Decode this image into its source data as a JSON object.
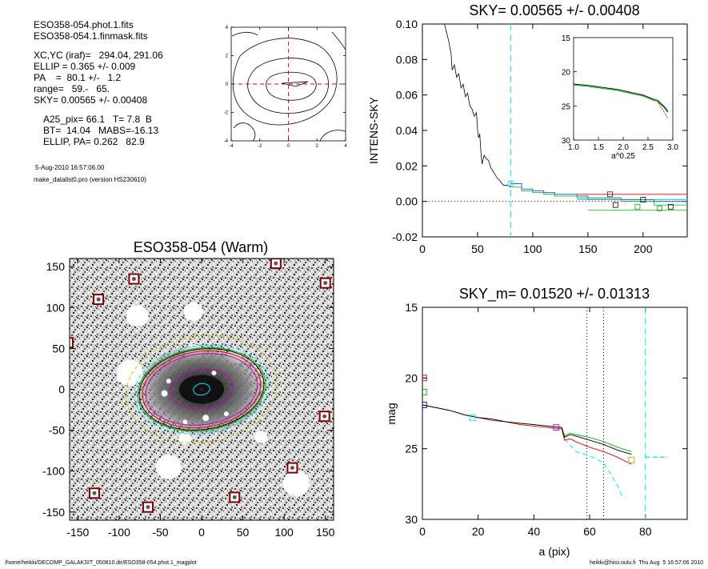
{
  "header": {
    "file1": "ESO358-054.phot.1.fits",
    "file2": "ESO358-054.1.finmask.fits",
    "xcyc": "XC,YC (iraf)=   294.04, 291.06",
    "ellip": "ELLIP = 0.365 +/- 0.009",
    "pa": "PA    =  80.1 +/-   1.2",
    "range": "range=   59.-   65.",
    "sky": "SKY= 0.00565 +/- 0.00408",
    "a25": "A25_pix= 66.1   T= 7.8  B",
    "bt": "BT=  14.04   MABS=-16.13",
    "ellip_pa": "ELLIP, PA= 0.262   82.9",
    "date": "5-Aug-2010 16:57:06.00",
    "program": "make_datalist0.pro (version HS230610)"
  },
  "footer": {
    "path": "/home/heikki/DECOMP_GALAKSIT_050810.dir/ESO358-054.phot.1_magplot",
    "user": "heikki@hiisi.oulu.fi  Thu Aug  5 16:57:06 2010"
  },
  "colors": {
    "cyan": "#00e5ff",
    "green": "#00b000",
    "red": "#e00000",
    "magenta": "#c000c0",
    "yellow": "#c8c800",
    "darkred": "#800000",
    "gray": "#808080"
  },
  "chart_data": [
    {
      "id": "contour",
      "type": "contour",
      "xlim": [
        -4,
        4
      ],
      "ylim": [
        -4,
        4
      ],
      "xticks": [
        "-4",
        "-2",
        "0",
        "2",
        "4"
      ],
      "yticks": [
        "-4",
        "-2",
        "0",
        "2",
        "4"
      ]
    },
    {
      "id": "sky",
      "type": "line",
      "title": "SKY= 0.00565 +/- 0.00408",
      "ylabel": "INTENS-SKY",
      "xlim": [
        0,
        240
      ],
      "ylim": [
        -0.02,
        0.1
      ],
      "xticks": [
        "0",
        "50",
        "100",
        "150",
        "200"
      ],
      "yticks": [
        "-0.02",
        "0.00",
        "0.02",
        "0.04",
        "0.06",
        "0.08",
        "0.10"
      ],
      "vline_x": 80,
      "profile": [
        [
          20,
          0.1
        ],
        [
          22,
          0.095
        ],
        [
          24,
          0.09
        ],
        [
          26,
          0.083
        ],
        [
          27,
          0.074
        ],
        [
          29,
          0.077
        ],
        [
          31,
          0.07
        ],
        [
          33,
          0.072
        ],
        [
          35,
          0.064
        ],
        [
          37,
          0.066
        ],
        [
          39,
          0.059
        ],
        [
          41,
          0.061
        ],
        [
          43,
          0.054
        ],
        [
          45,
          0.052
        ],
        [
          47,
          0.048
        ],
        [
          49,
          0.05
        ],
        [
          50,
          0.04
        ],
        [
          51,
          0.036
        ],
        [
          52,
          0.038
        ],
        [
          53,
          0.028
        ],
        [
          54,
          0.021
        ],
        [
          56,
          0.026
        ],
        [
          58,
          0.024
        ],
        [
          60,
          0.023
        ],
        [
          62,
          0.019
        ],
        [
          64,
          0.017
        ],
        [
          66,
          0.015
        ],
        [
          68,
          0.013
        ],
        [
          70,
          0.012
        ],
        [
          72,
          0.01
        ],
        [
          74,
          0.009
        ],
        [
          76,
          0.009
        ],
        [
          78,
          0.009
        ],
        [
          80,
          0.008
        ]
      ],
      "steps_blue": [
        [
          80,
          0.01
        ],
        [
          90,
          0.007
        ],
        [
          100,
          0.006
        ],
        [
          110,
          0.005
        ],
        [
          120,
          0.004
        ],
        [
          130,
          0.004
        ],
        [
          140,
          0.003
        ],
        [
          150,
          0.002
        ],
        [
          180,
          0.001
        ],
        [
          210,
          0.0
        ]
      ],
      "steps_green": [
        [
          80,
          0.008
        ],
        [
          90,
          0.006
        ],
        [
          100,
          0.005
        ],
        [
          110,
          0.004
        ],
        [
          120,
          0.003
        ],
        [
          130,
          0.003
        ],
        [
          140,
          0.002
        ],
        [
          150,
          0.001
        ],
        [
          180,
          0.0
        ],
        [
          210,
          -0.002
        ]
      ],
      "sky_lines": {
        "red": 0.004,
        "cyan": 0.001,
        "green": -0.005
      },
      "inset": {
        "xlim": [
          1.0,
          3.0
        ],
        "ylim": [
          15,
          30
        ],
        "xlabel": "a^0.25",
        "xticks": [
          "1.0",
          "1.5",
          "2.0",
          "2.5",
          "3.0"
        ],
        "yticks": [
          "15",
          "20",
          "25",
          "30"
        ],
        "profile": [
          [
            1.0,
            21.8
          ],
          [
            1.3,
            22.0
          ],
          [
            1.6,
            22.3
          ],
          [
            1.9,
            22.6
          ],
          [
            2.2,
            23.1
          ],
          [
            2.4,
            23.4
          ],
          [
            2.5,
            23.7
          ],
          [
            2.6,
            24.0
          ],
          [
            2.7,
            24.2
          ],
          [
            2.75,
            24.6
          ],
          [
            2.8,
            24.9
          ],
          [
            2.85,
            25.3
          ],
          [
            2.9,
            25.8
          ]
        ]
      }
    },
    {
      "id": "image",
      "type": "image",
      "title": "ESO358-054 (Warm)",
      "xlim": [
        -160,
        160
      ],
      "ylim": [
        -160,
        160
      ],
      "xticks": [
        "-150",
        "-100",
        "-50",
        "0",
        "50",
        "100",
        "150"
      ],
      "yticks": [
        "-150",
        "-100",
        "-50",
        "0",
        "50",
        "100",
        "150"
      ],
      "stars": [
        [
          90,
          154
        ],
        [
          -82,
          135
        ],
        [
          150,
          130
        ],
        [
          -125,
          110
        ],
        [
          -162,
          57
        ],
        [
          149,
          -33
        ],
        [
          110,
          -96
        ],
        [
          -130,
          -127
        ],
        [
          -65,
          -144
        ],
        [
          40,
          -132
        ]
      ],
      "ellipses": [
        {
          "a": 10,
          "e": 0.3,
          "color": "#00e5ff"
        },
        {
          "a": 38,
          "e": 0.37,
          "color": "#c000c0"
        },
        {
          "a": 68,
          "e": 0.37,
          "color": "#c000c0"
        },
        {
          "a": 72,
          "e": 0.36,
          "color": "#e00000"
        },
        {
          "a": 76,
          "e": 0.36,
          "color": "#000000"
        },
        {
          "a": 78,
          "e": 0.36,
          "color": "#00b000"
        },
        {
          "a": 82,
          "e": 0.35,
          "color": "#00e5ff"
        },
        {
          "a": 92,
          "e": 0.3,
          "color": "#c8c800"
        }
      ]
    },
    {
      "id": "mag",
      "type": "line",
      "title": "SKY_m=  0.01520 +/- 0.01313",
      "xlabel": "a (pix)",
      "ylabel": "mag",
      "xlim": [
        0,
        95
      ],
      "ylim": [
        15,
        30
      ],
      "xticks": [
        "0",
        "20",
        "40",
        "60",
        "80"
      ],
      "yticks": [
        "15",
        "20",
        "25",
        "30"
      ],
      "vlines_dotted": [
        59,
        65
      ],
      "vline_cyan": 80,
      "black": [
        [
          0,
          21.9
        ],
        [
          5,
          22.1
        ],
        [
          10,
          22.3
        ],
        [
          15,
          22.6
        ],
        [
          20,
          22.8
        ],
        [
          25,
          22.9
        ],
        [
          30,
          23.1
        ],
        [
          35,
          23.2
        ],
        [
          40,
          23.3
        ],
        [
          45,
          23.4
        ],
        [
          50,
          23.5
        ],
        [
          51,
          24.2
        ],
        [
          53,
          24.0
        ],
        [
          55,
          24.1
        ],
        [
          60,
          24.4
        ],
        [
          65,
          24.7
        ],
        [
          70,
          25.1
        ],
        [
          75,
          25.4
        ]
      ],
      "red": [
        [
          0,
          21.9
        ],
        [
          5,
          22.1
        ],
        [
          10,
          22.3
        ],
        [
          15,
          22.6
        ],
        [
          20,
          22.8
        ],
        [
          25,
          23.0
        ],
        [
          30,
          23.1
        ],
        [
          35,
          23.3
        ],
        [
          40,
          23.4
        ],
        [
          45,
          23.5
        ],
        [
          50,
          23.6
        ],
        [
          51,
          24.4
        ],
        [
          53,
          24.3
        ],
        [
          55,
          24.5
        ],
        [
          60,
          24.9
        ],
        [
          65,
          25.2
        ],
        [
          70,
          25.6
        ],
        [
          75,
          26.1
        ]
      ],
      "green": [
        [
          0,
          21.9
        ],
        [
          5,
          22.1
        ],
        [
          10,
          22.3
        ],
        [
          15,
          22.6
        ],
        [
          20,
          22.8
        ],
        [
          25,
          22.9
        ],
        [
          30,
          23.1
        ],
        [
          35,
          23.2
        ],
        [
          40,
          23.3
        ],
        [
          45,
          23.4
        ],
        [
          50,
          23.5
        ],
        [
          51,
          24.1
        ],
        [
          53,
          23.9
        ],
        [
          55,
          24.0
        ],
        [
          60,
          24.2
        ],
        [
          65,
          24.5
        ],
        [
          70,
          24.9
        ],
        [
          75,
          25.2
        ]
      ],
      "cyan_seg": [
        [
          51,
          24.3
        ],
        [
          55,
          25.2
        ],
        [
          60,
          25.5
        ],
        [
          65,
          26.0
        ],
        [
          70,
          27.6
        ],
        [
          72,
          28.5
        ]
      ],
      "sky_seg": {
        "x0": 80,
        "x1": 88,
        "y": 25.6
      },
      "markers": [
        {
          "x": 0.5,
          "y": 20.0,
          "color": "#e00000"
        },
        {
          "x": 0.5,
          "y": 21.0,
          "color": "#00b000"
        },
        {
          "x": 0.5,
          "y": 21.9,
          "color": "#0000c0"
        },
        {
          "x": 18,
          "y": 22.8,
          "color": "#00e5ff"
        },
        {
          "x": 48,
          "y": 23.5,
          "color": "#c000c0"
        },
        {
          "x": 75,
          "y": 25.8,
          "color": "#c8a000"
        }
      ]
    }
  ]
}
